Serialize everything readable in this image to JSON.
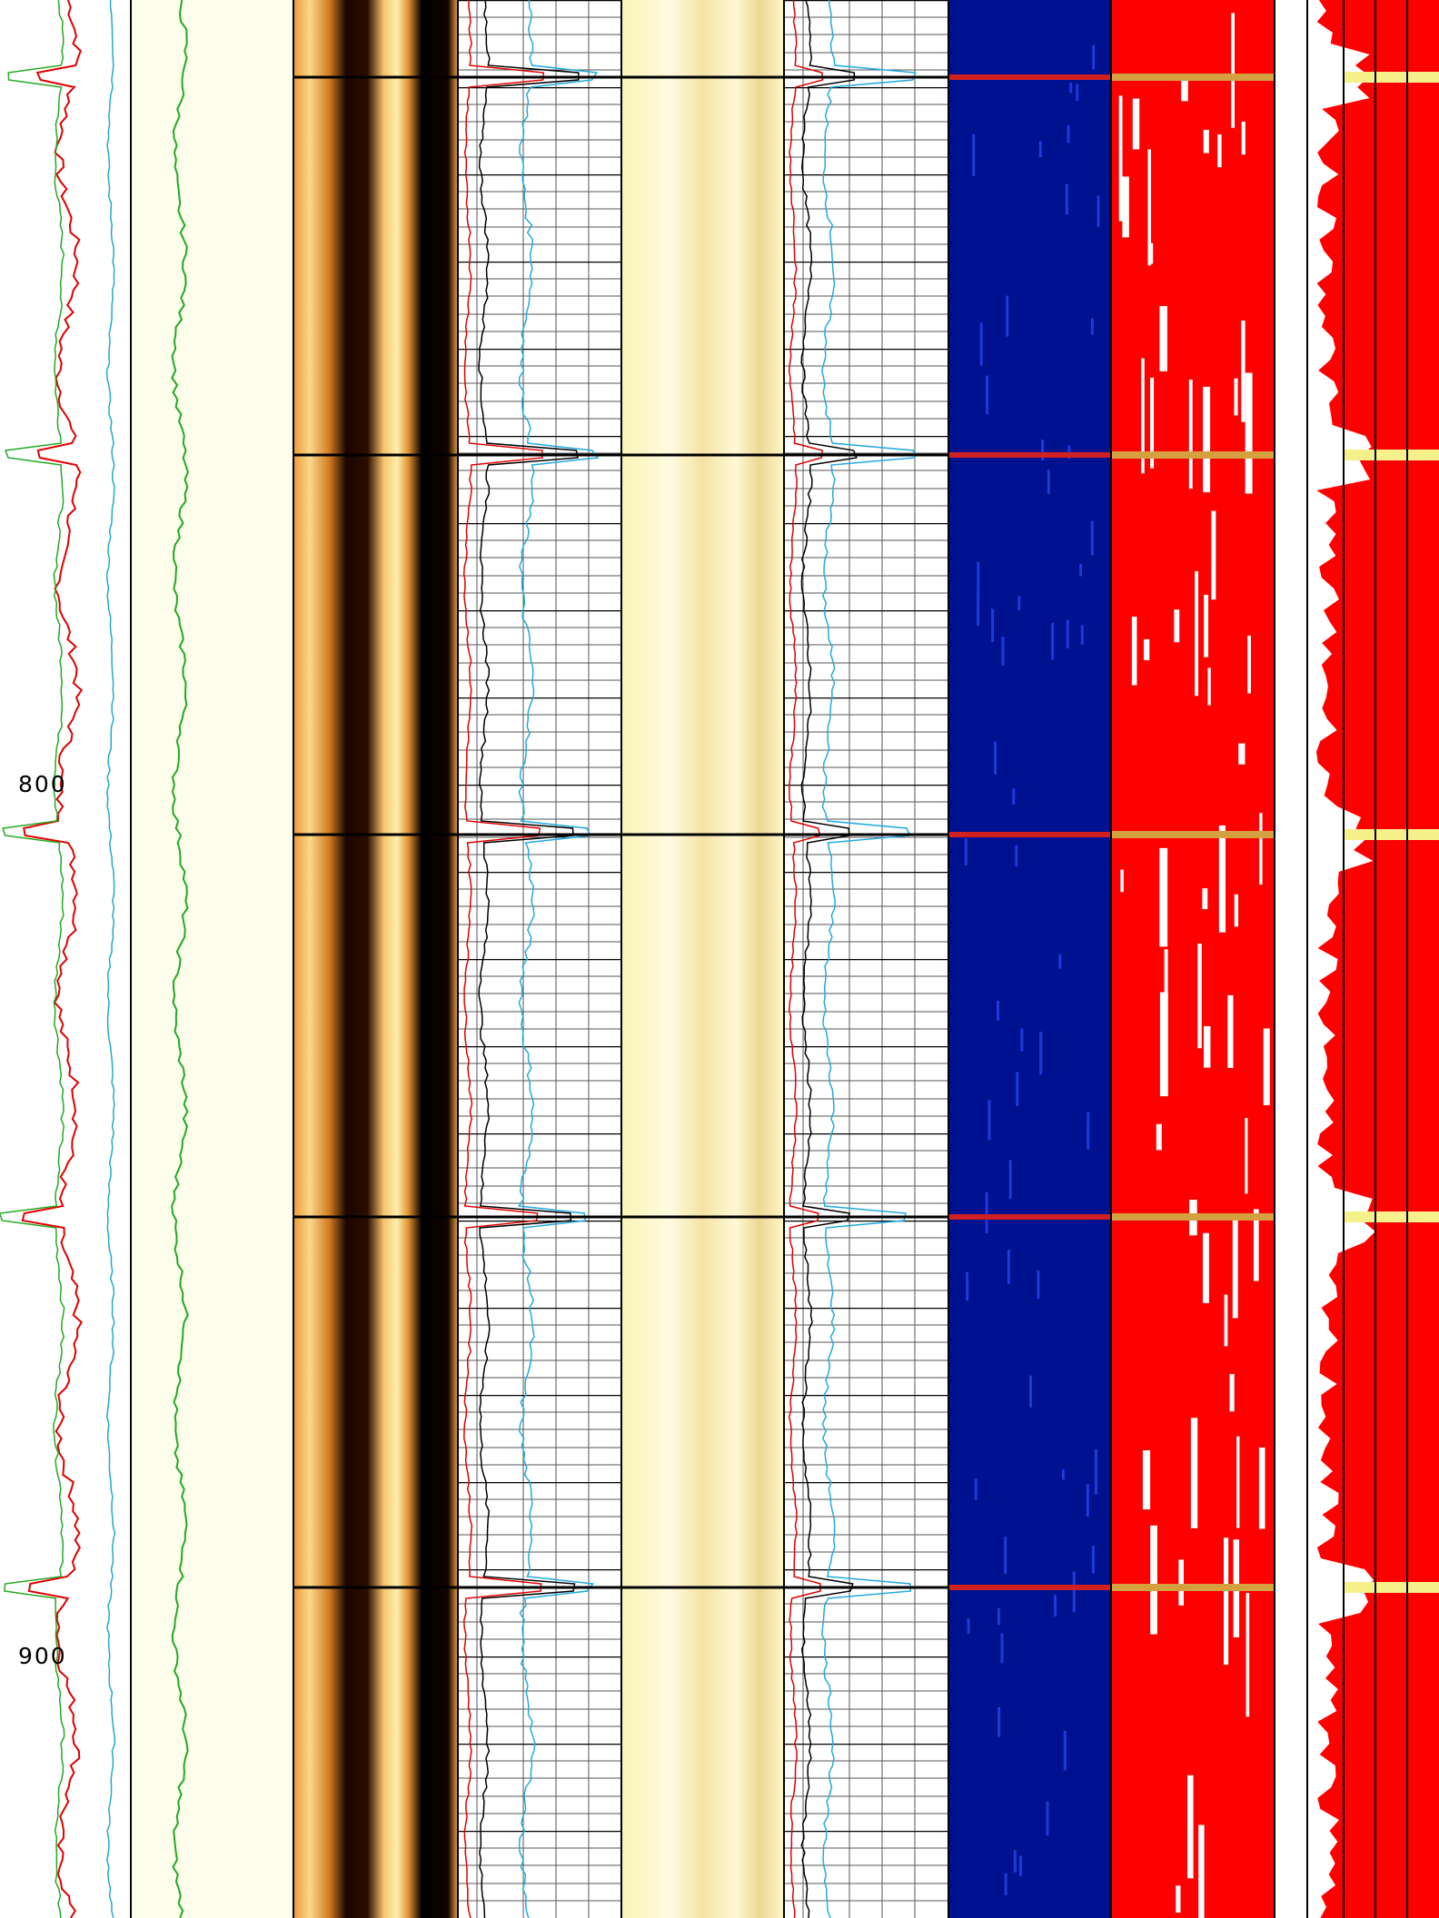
{
  "depth_track": {
    "labels": [
      "800",
      "900"
    ]
  }
}
